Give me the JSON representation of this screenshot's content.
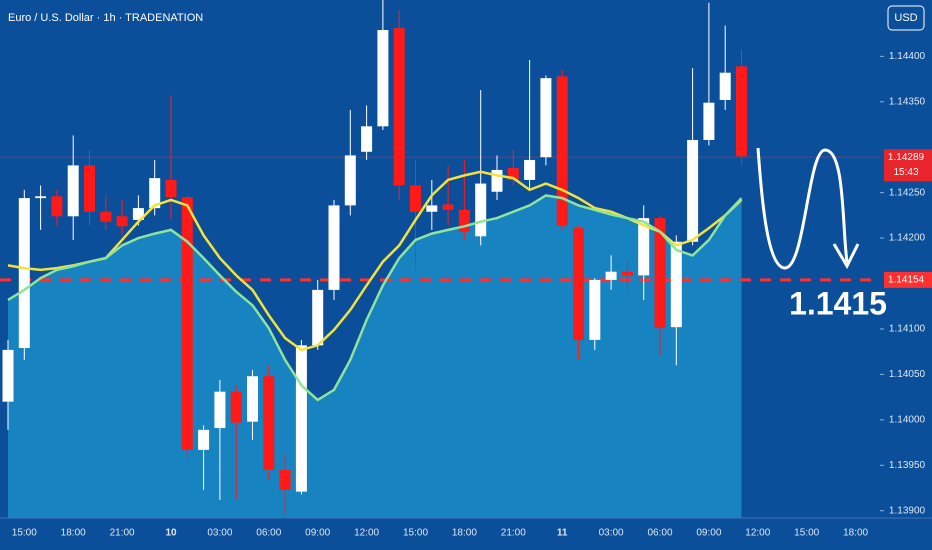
{
  "chart_data": {
    "type": "candlestick",
    "title": "Euro / U.S. Dollar · 1h · TRADENATION",
    "currency": "USD",
    "categories": [
      null,
      "15:00",
      null,
      null,
      "18:00",
      null,
      null,
      "21:00",
      null,
      null,
      "10",
      null,
      null,
      "03:00",
      null,
      null,
      "06:00",
      null,
      null,
      "09:00",
      null,
      null,
      "12:00",
      null,
      null,
      "15:00",
      null,
      null,
      "18:00",
      null,
      null,
      "21:00",
      null,
      null,
      "11",
      null,
      null,
      "03:00",
      null,
      null,
      "06:00",
      null,
      null,
      "09:00",
      null,
      null,
      "12:00",
      null,
      null,
      "15:00",
      null,
      null,
      "18:00"
    ],
    "candles": {
      "up_color": "#ffffff",
      "down_color": "#ff1a1a",
      "open": [
        1.1402,
        1.14079,
        1.14244,
        1.14246,
        1.14224,
        1.1428,
        1.14229,
        1.14224,
        1.1422,
        1.14233,
        1.14264,
        1.14245,
        1.13967,
        1.13991,
        1.14031,
        1.13998,
        1.14048,
        1.13945,
        1.13921,
        1.14082,
        1.14143,
        1.14236,
        1.14295,
        1.14323,
        1.14431,
        1.14258,
        1.14229,
        1.14237,
        1.14231,
        1.14202,
        1.14251,
        1.14277,
        1.14264,
        1.14289,
        1.14378,
        1.14211,
        1.14088,
        1.14154,
        1.14163,
        1.14159,
        1.14222,
        1.14102,
        1.14196,
        1.14308,
        1.14352,
        1.14389,
        null,
        null,
        null,
        null,
        null,
        null,
        null
      ],
      "high": [
        1.14088,
        1.14253,
        1.14258,
        1.14253,
        1.14313,
        1.14297,
        1.14247,
        1.14242,
        1.14247,
        1.14286,
        1.14357,
        1.14247,
        1.13994,
        1.14044,
        1.14038,
        1.14055,
        1.1406,
        1.13962,
        1.14088,
        1.14154,
        1.14242,
        1.14341,
        1.14346,
        1.14462,
        1.14451,
        1.14286,
        1.14264,
        1.1428,
        1.14286,
        1.14363,
        1.14291,
        1.14297,
        1.14396,
        1.14379,
        1.14385,
        1.14214,
        1.14156,
        1.14181,
        1.14176,
        1.14236,
        1.14225,
        1.14203,
        1.14387,
        1.14459,
        1.14434,
        1.14407,
        null,
        null,
        null,
        null,
        null,
        null,
        null
      ],
      "low": [
        1.13989,
        1.14066,
        1.14209,
        1.14214,
        1.14198,
        1.14214,
        1.14209,
        1.14203,
        1.14214,
        1.14225,
        1.1422,
        1.13956,
        1.13923,
        1.13912,
        1.13912,
        1.13978,
        1.13934,
        1.13896,
        1.13918,
        1.14077,
        1.14132,
        1.14225,
        1.14286,
        1.14319,
        1.14242,
        1.14165,
        1.14209,
        1.14214,
        1.14198,
        1.14192,
        1.14242,
        1.14258,
        1.14253,
        1.1428,
        1.14209,
        1.14066,
        1.14077,
        1.14143,
        1.14143,
        1.14132,
        1.14071,
        1.1406,
        1.14192,
        1.14302,
        1.14341,
        1.1428,
        null,
        null,
        null,
        null,
        null,
        null,
        null
      ],
      "close": [
        1.14077,
        1.14244,
        1.14246,
        1.14224,
        1.1428,
        1.14229,
        1.14218,
        1.14213,
        1.14233,
        1.14266,
        1.14245,
        1.13967,
        1.13989,
        1.14031,
        1.13997,
        1.14048,
        1.13945,
        1.13923,
        1.14082,
        1.14143,
        1.14236,
        1.14291,
        1.14323,
        1.14429,
        1.14258,
        1.14229,
        1.14236,
        1.14231,
        1.14207,
        1.1426,
        1.14275,
        1.14264,
        1.14286,
        1.14376,
        1.14214,
        1.14088,
        1.14154,
        1.14163,
        1.14159,
        1.14222,
        1.14101,
        1.14196,
        1.14308,
        1.14349,
        1.14382,
        1.1429,
        null,
        null,
        null,
        null,
        null,
        null,
        null
      ]
    },
    "lines": [
      {
        "color": "#f2e33c",
        "fill": false,
        "values": [
          1.1417,
          1.14167,
          1.14165,
          1.14167,
          1.1417,
          1.14174,
          1.14178,
          1.14198,
          1.14218,
          1.14236,
          1.14242,
          1.14236,
          1.14203,
          1.14178,
          1.14159,
          1.14143,
          1.14115,
          1.1409,
          1.14077,
          1.14082,
          1.14099,
          1.14121,
          1.14148,
          1.14174,
          1.14192,
          1.1422,
          1.14247,
          1.14264,
          1.14269,
          1.14273,
          1.14269,
          1.14266,
          1.14253,
          1.1426,
          1.14253,
          1.14244,
          1.14233,
          1.14229,
          1.14222,
          1.14214,
          1.14207,
          1.14192,
          1.14198,
          1.14211,
          1.14225,
          1.14242,
          null,
          null,
          null,
          null,
          null,
          null,
          null
        ]
      },
      {
        "color": "#8fe39a",
        "fill": true,
        "fill_color": "#1a8cc8",
        "values": [
          1.14132,
          1.14143,
          1.14156,
          1.14165,
          1.14169,
          1.14174,
          1.14178,
          1.14192,
          1.142,
          1.14205,
          1.14209,
          1.14196,
          1.14178,
          1.14159,
          1.14141,
          1.14126,
          1.14101,
          1.14066,
          1.14038,
          1.14022,
          1.14033,
          1.14066,
          1.1411,
          1.14148,
          1.14178,
          1.14198,
          1.14205,
          1.14209,
          1.14213,
          1.14218,
          1.14222,
          1.14229,
          1.14236,
          1.14247,
          1.14244,
          1.14236,
          1.14231,
          1.14226,
          1.14222,
          1.14218,
          1.14207,
          1.14187,
          1.14181,
          1.14198,
          1.14225,
          1.14244,
          null,
          null,
          null,
          null,
          null,
          null,
          null
        ]
      }
    ],
    "price_lines": [
      {
        "value": 1.14154,
        "label": "1.14154",
        "color": "#ff3030",
        "dashed": true
      },
      {
        "value": 1.14289,
        "label": "1.14289",
        "countdown": "15:43",
        "color": "#e8252a",
        "dashed": false
      }
    ],
    "annotation": "1.1415",
    "ylim": [
      1.13892,
      1.14462
    ],
    "yticks": [
      {
        "value": 1.144,
        "label": "1.14400"
      },
      {
        "value": 1.1435,
        "label": "1.14350"
      },
      {
        "value": 1.1425,
        "label": "1.14250"
      },
      {
        "value": 1.142,
        "label": "1.14200"
      },
      {
        "value": 1.141,
        "label": "1.14100"
      },
      {
        "value": 1.1405,
        "label": "1.14050"
      },
      {
        "value": 1.14,
        "label": "1.14000"
      },
      {
        "value": 1.1395,
        "label": "1.13950"
      },
      {
        "value": 1.139,
        "label": "1.13900"
      }
    ],
    "grid": false
  }
}
